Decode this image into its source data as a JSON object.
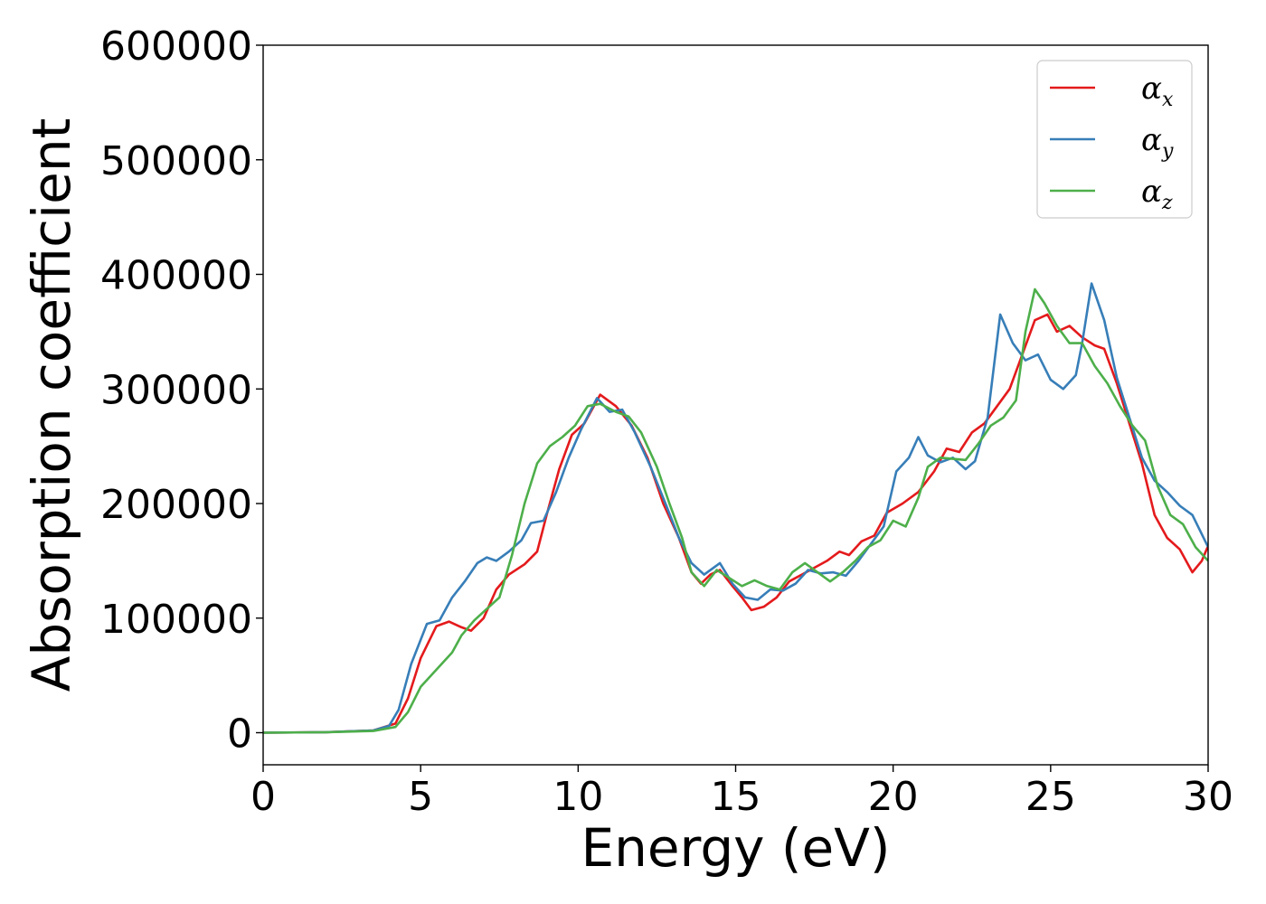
{
  "chart_data": {
    "type": "line",
    "title": "",
    "xlabel": "Energy (eV)",
    "ylabel": "Absorption coefficient",
    "xlim": [
      0,
      30
    ],
    "ylim": [
      -28000,
      600000
    ],
    "xticks": [
      0,
      5,
      10,
      15,
      20,
      25,
      30
    ],
    "xtick_labels": [
      "0",
      "5",
      "10",
      "15",
      "20",
      "25",
      "30"
    ],
    "yticks": [
      0,
      100000,
      200000,
      300000,
      400000,
      500000,
      600000
    ],
    "ytick_labels": [
      "0",
      "100000",
      "200000",
      "300000",
      "400000",
      "500000",
      "600000"
    ],
    "grid": false,
    "legend_position": "top-right",
    "series": [
      {
        "name": "α_x",
        "legend_base": "α",
        "legend_sub": "x",
        "color": "#e41a1c",
        "points": [
          [
            0,
            0
          ],
          [
            2,
            500
          ],
          [
            3.5,
            2000
          ],
          [
            4.2,
            8000
          ],
          [
            4.6,
            30000
          ],
          [
            5.0,
            65000
          ],
          [
            5.5,
            93000
          ],
          [
            5.9,
            97000
          ],
          [
            6.3,
            92000
          ],
          [
            6.6,
            89000
          ],
          [
            7.0,
            100000
          ],
          [
            7.4,
            125000
          ],
          [
            7.8,
            138000
          ],
          [
            8.3,
            147000
          ],
          [
            8.7,
            158000
          ],
          [
            9.0,
            190000
          ],
          [
            9.4,
            230000
          ],
          [
            9.8,
            260000
          ],
          [
            10.2,
            270000
          ],
          [
            10.7,
            295000
          ],
          [
            11.2,
            285000
          ],
          [
            11.7,
            268000
          ],
          [
            12.2,
            240000
          ],
          [
            12.7,
            200000
          ],
          [
            13.2,
            170000
          ],
          [
            13.6,
            140000
          ],
          [
            13.9,
            130000
          ],
          [
            14.2,
            138000
          ],
          [
            14.5,
            142000
          ],
          [
            14.9,
            128000
          ],
          [
            15.2,
            118000
          ],
          [
            15.5,
            107000
          ],
          [
            15.9,
            110000
          ],
          [
            16.3,
            118000
          ],
          [
            16.7,
            132000
          ],
          [
            17.1,
            138000
          ],
          [
            17.5,
            144000
          ],
          [
            17.9,
            150000
          ],
          [
            18.3,
            158000
          ],
          [
            18.6,
            155000
          ],
          [
            19.0,
            167000
          ],
          [
            19.4,
            172000
          ],
          [
            19.8,
            192000
          ],
          [
            20.3,
            200000
          ],
          [
            20.8,
            210000
          ],
          [
            21.3,
            228000
          ],
          [
            21.7,
            248000
          ],
          [
            22.1,
            245000
          ],
          [
            22.5,
            262000
          ],
          [
            22.9,
            270000
          ],
          [
            23.3,
            285000
          ],
          [
            23.7,
            300000
          ],
          [
            24.1,
            330000
          ],
          [
            24.5,
            360000
          ],
          [
            24.9,
            365000
          ],
          [
            25.2,
            350000
          ],
          [
            25.6,
            355000
          ],
          [
            26.0,
            345000
          ],
          [
            26.4,
            338000
          ],
          [
            26.7,
            335000
          ],
          [
            27.1,
            305000
          ],
          [
            27.5,
            270000
          ],
          [
            27.9,
            235000
          ],
          [
            28.3,
            190000
          ],
          [
            28.7,
            170000
          ],
          [
            29.1,
            160000
          ],
          [
            29.5,
            140000
          ],
          [
            29.8,
            150000
          ],
          [
            30,
            163000
          ]
        ]
      },
      {
        "name": "α_y",
        "legend_base": "α",
        "legend_sub": "y",
        "color": "#377eb8",
        "points": [
          [
            0,
            0
          ],
          [
            2,
            500
          ],
          [
            3.5,
            2000
          ],
          [
            4.0,
            6000
          ],
          [
            4.3,
            20000
          ],
          [
            4.7,
            60000
          ],
          [
            5.2,
            95000
          ],
          [
            5.6,
            98000
          ],
          [
            6.0,
            118000
          ],
          [
            6.4,
            132000
          ],
          [
            6.8,
            148000
          ],
          [
            7.1,
            153000
          ],
          [
            7.4,
            150000
          ],
          [
            7.8,
            158000
          ],
          [
            8.2,
            168000
          ],
          [
            8.5,
            183000
          ],
          [
            8.9,
            185000
          ],
          [
            9.3,
            210000
          ],
          [
            9.7,
            240000
          ],
          [
            10.1,
            265000
          ],
          [
            10.6,
            292000
          ],
          [
            11.0,
            280000
          ],
          [
            11.4,
            282000
          ],
          [
            11.8,
            262000
          ],
          [
            12.3,
            232000
          ],
          [
            12.8,
            198000
          ],
          [
            13.2,
            170000
          ],
          [
            13.6,
            148000
          ],
          [
            14.0,
            138000
          ],
          [
            14.5,
            148000
          ],
          [
            14.9,
            130000
          ],
          [
            15.3,
            118000
          ],
          [
            15.7,
            116000
          ],
          [
            16.1,
            125000
          ],
          [
            16.5,
            124000
          ],
          [
            16.9,
            130000
          ],
          [
            17.3,
            142000
          ],
          [
            17.7,
            139000
          ],
          [
            18.1,
            140000
          ],
          [
            18.5,
            137000
          ],
          [
            18.9,
            150000
          ],
          [
            19.3,
            165000
          ],
          [
            19.7,
            180000
          ],
          [
            20.1,
            228000
          ],
          [
            20.5,
            240000
          ],
          [
            20.8,
            258000
          ],
          [
            21.1,
            242000
          ],
          [
            21.5,
            236000
          ],
          [
            21.9,
            240000
          ],
          [
            22.3,
            230000
          ],
          [
            22.6,
            237000
          ],
          [
            23.0,
            275000
          ],
          [
            23.4,
            365000
          ],
          [
            23.8,
            340000
          ],
          [
            24.2,
            325000
          ],
          [
            24.6,
            330000
          ],
          [
            25.0,
            308000
          ],
          [
            25.4,
            300000
          ],
          [
            25.8,
            312000
          ],
          [
            26.0,
            340000
          ],
          [
            26.3,
            392000
          ],
          [
            26.7,
            360000
          ],
          [
            27.1,
            310000
          ],
          [
            27.5,
            275000
          ],
          [
            27.9,
            240000
          ],
          [
            28.3,
            220000
          ],
          [
            28.7,
            210000
          ],
          [
            29.1,
            198000
          ],
          [
            29.5,
            190000
          ],
          [
            30,
            162000
          ]
        ]
      },
      {
        "name": "α_z",
        "legend_base": "α",
        "legend_sub": "z",
        "color": "#4daf4a",
        "points": [
          [
            0,
            0
          ],
          [
            2,
            400
          ],
          [
            3.5,
            1500
          ],
          [
            4.2,
            5000
          ],
          [
            4.6,
            18000
          ],
          [
            5.0,
            40000
          ],
          [
            5.5,
            55000
          ],
          [
            6.0,
            70000
          ],
          [
            6.3,
            85000
          ],
          [
            6.7,
            98000
          ],
          [
            7.1,
            108000
          ],
          [
            7.5,
            118000
          ],
          [
            7.9,
            155000
          ],
          [
            8.3,
            200000
          ],
          [
            8.7,
            235000
          ],
          [
            9.1,
            250000
          ],
          [
            9.5,
            258000
          ],
          [
            9.9,
            268000
          ],
          [
            10.3,
            285000
          ],
          [
            10.7,
            287000
          ],
          [
            11.2,
            280000
          ],
          [
            11.6,
            276000
          ],
          [
            12.0,
            262000
          ],
          [
            12.5,
            232000
          ],
          [
            12.9,
            200000
          ],
          [
            13.3,
            170000
          ],
          [
            13.6,
            140000
          ],
          [
            14.0,
            128000
          ],
          [
            14.4,
            142000
          ],
          [
            14.8,
            135000
          ],
          [
            15.2,
            128000
          ],
          [
            15.6,
            133000
          ],
          [
            16.0,
            128000
          ],
          [
            16.4,
            125000
          ],
          [
            16.8,
            140000
          ],
          [
            17.2,
            148000
          ],
          [
            17.6,
            140000
          ],
          [
            18.0,
            132000
          ],
          [
            18.4,
            140000
          ],
          [
            18.8,
            150000
          ],
          [
            19.2,
            162000
          ],
          [
            19.6,
            168000
          ],
          [
            20.0,
            185000
          ],
          [
            20.4,
            180000
          ],
          [
            20.8,
            205000
          ],
          [
            21.1,
            232000
          ],
          [
            21.5,
            240000
          ],
          [
            21.9,
            239000
          ],
          [
            22.3,
            238000
          ],
          [
            22.7,
            252000
          ],
          [
            23.1,
            268000
          ],
          [
            23.5,
            275000
          ],
          [
            23.9,
            290000
          ],
          [
            24.2,
            350000
          ],
          [
            24.5,
            387000
          ],
          [
            24.8,
            375000
          ],
          [
            25.2,
            355000
          ],
          [
            25.6,
            340000
          ],
          [
            26.0,
            340000
          ],
          [
            26.4,
            320000
          ],
          [
            26.8,
            305000
          ],
          [
            27.2,
            285000
          ],
          [
            27.6,
            268000
          ],
          [
            28.0,
            255000
          ],
          [
            28.4,
            215000
          ],
          [
            28.8,
            190000
          ],
          [
            29.2,
            182000
          ],
          [
            29.6,
            162000
          ],
          [
            30,
            150000
          ]
        ]
      }
    ]
  }
}
